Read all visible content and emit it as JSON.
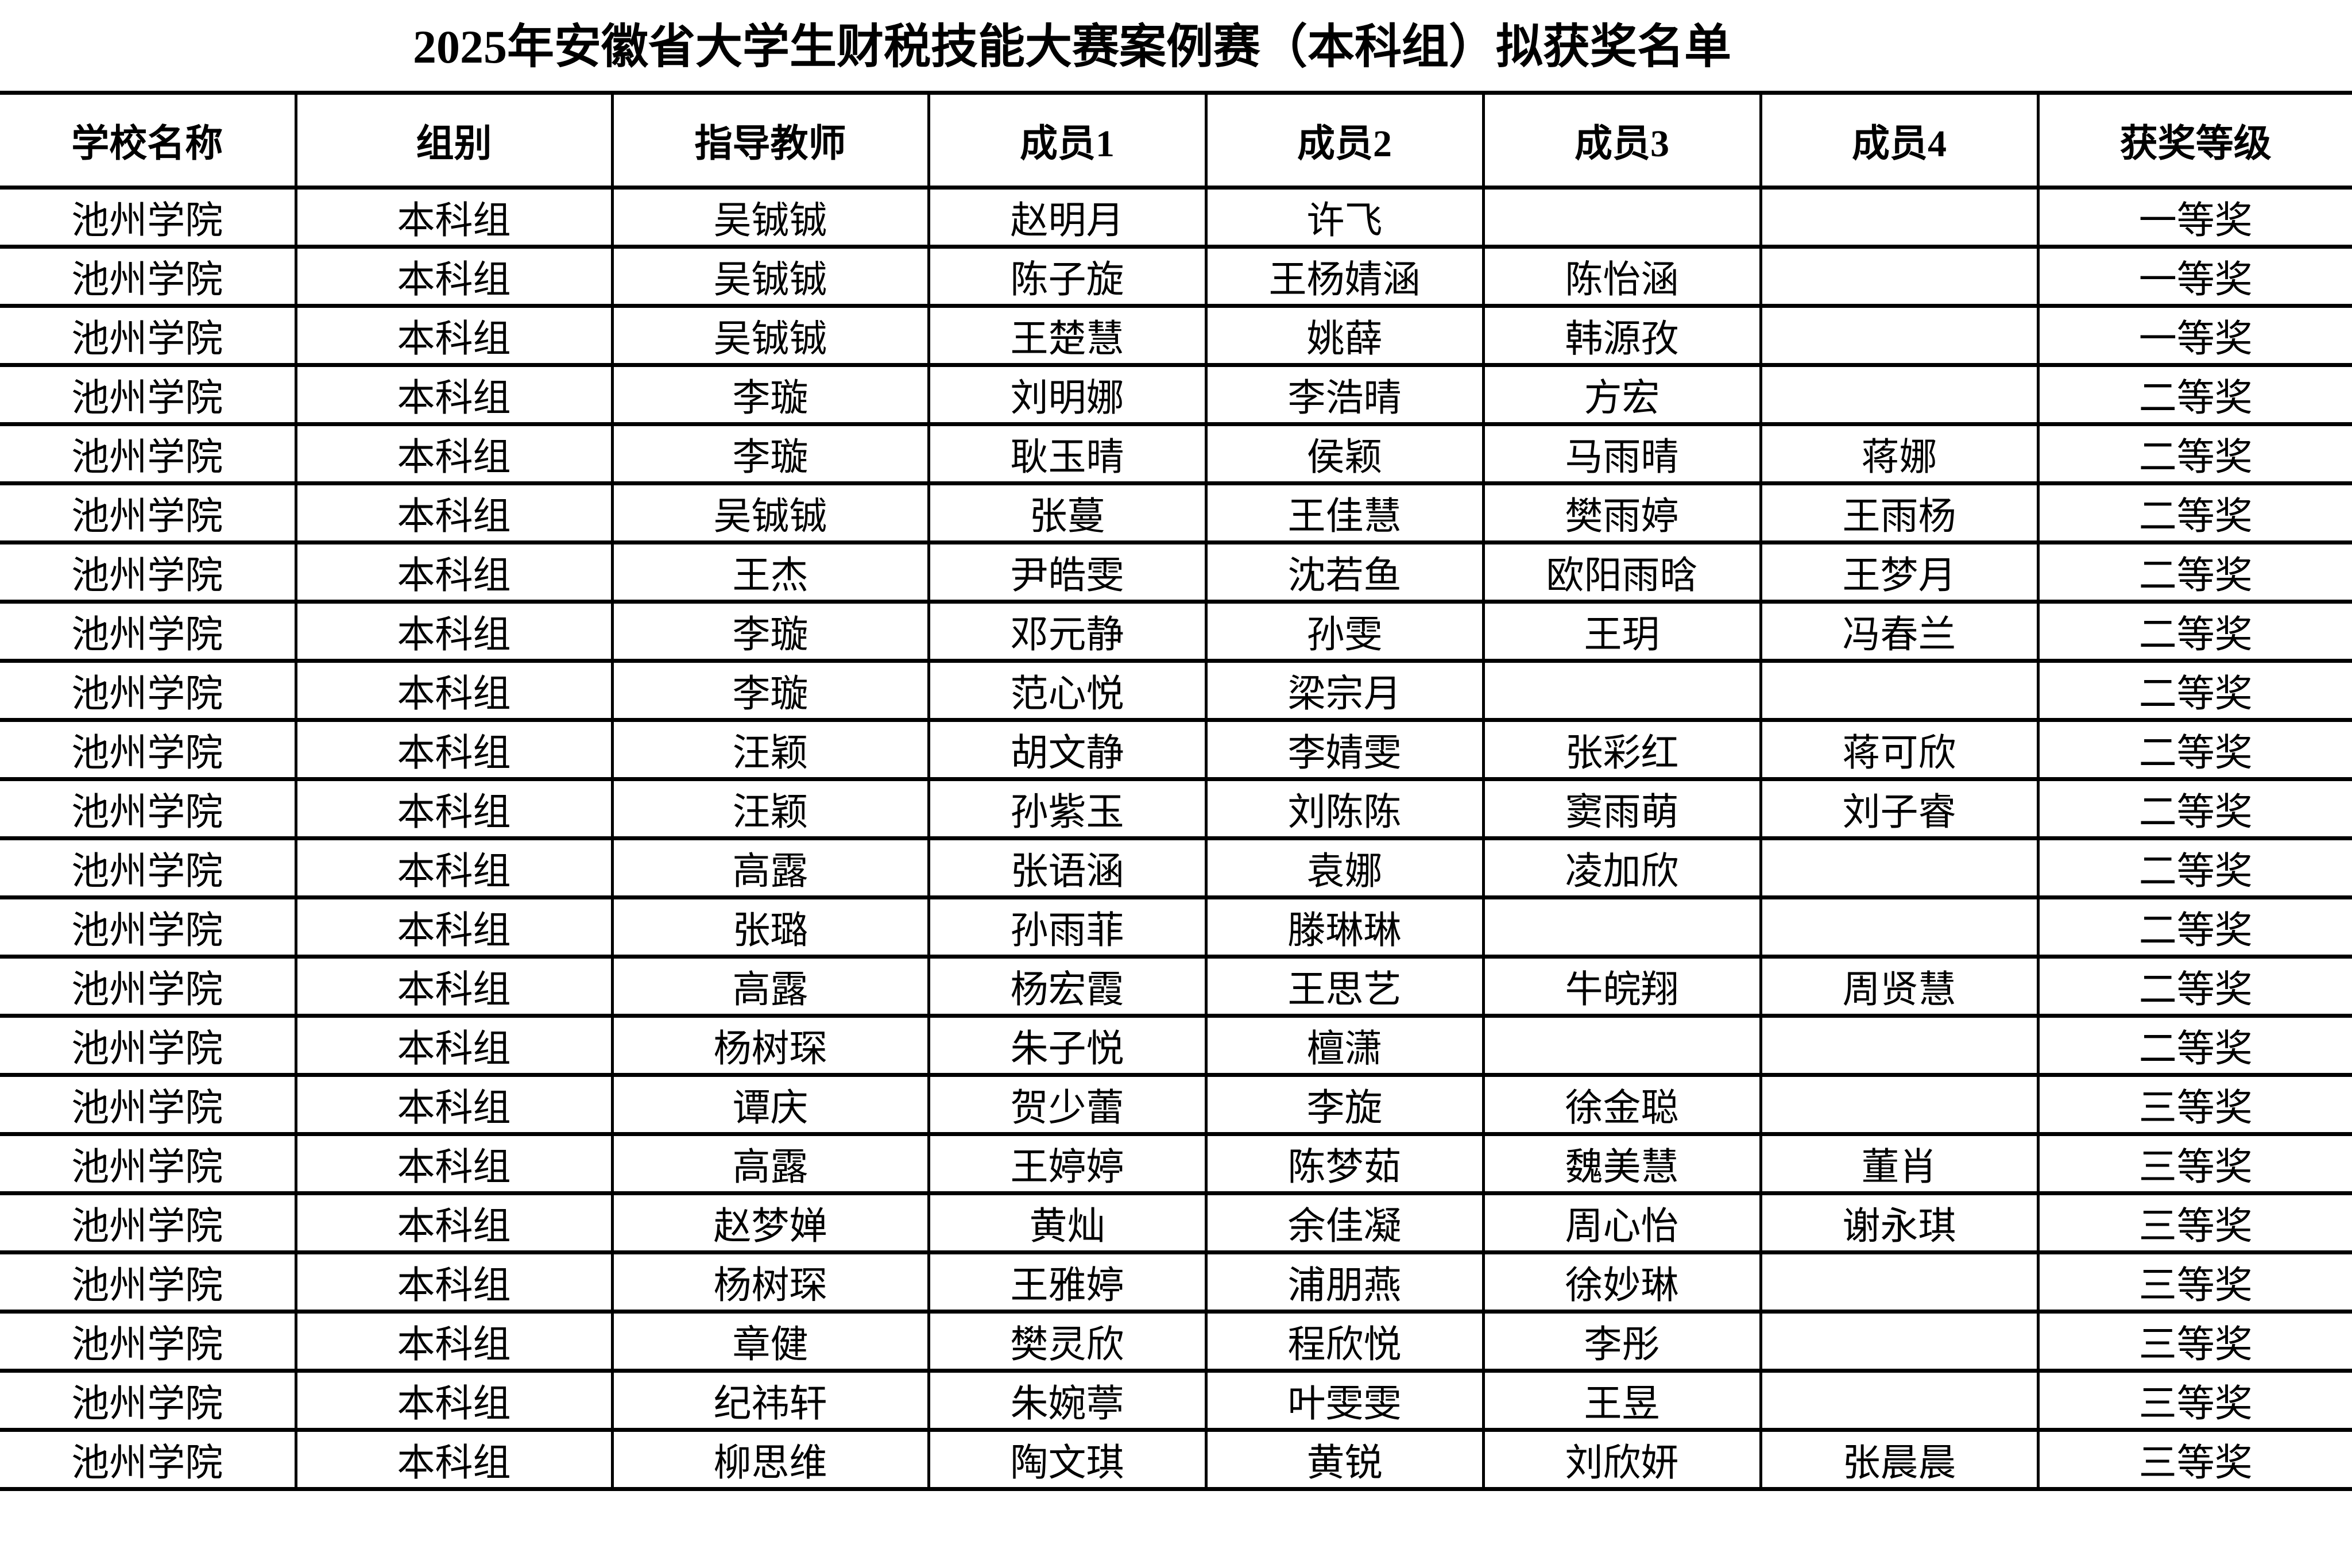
{
  "title": "2025年安徽省大学生财税技能大赛案例赛（本科组）拟获奖名单",
  "columns": [
    "学校名称",
    "组别",
    "指导教师",
    "成员1",
    "成员2",
    "成员3",
    "成员4",
    "获奖等级"
  ],
  "rows": [
    [
      "池州学院",
      "本科组",
      "吴铖铖",
      "赵明月",
      "许飞",
      "",
      "",
      "一等奖"
    ],
    [
      "池州学院",
      "本科组",
      "吴铖铖",
      "陈子旋",
      "王杨婧涵",
      "陈怡涵",
      "",
      "一等奖"
    ],
    [
      "池州学院",
      "本科组",
      "吴铖铖",
      "王楚慧",
      "姚薛",
      "韩源孜",
      "",
      "一等奖"
    ],
    [
      "池州学院",
      "本科组",
      "李璇",
      "刘明娜",
      "李浩晴",
      "方宏",
      "",
      "二等奖"
    ],
    [
      "池州学院",
      "本科组",
      "李璇",
      "耿玉晴",
      "侯颖",
      "马雨晴",
      "蒋娜",
      "二等奖"
    ],
    [
      "池州学院",
      "本科组",
      "吴铖铖",
      "张蔓",
      "王佳慧",
      "樊雨婷",
      "王雨杨",
      "二等奖"
    ],
    [
      "池州学院",
      "本科组",
      "王杰",
      "尹皓雯",
      "沈若鱼",
      "欧阳雨晗",
      "王梦月",
      "二等奖"
    ],
    [
      "池州学院",
      "本科组",
      "李璇",
      "邓元静",
      "孙雯",
      "王玥",
      "冯春兰",
      "二等奖"
    ],
    [
      "池州学院",
      "本科组",
      "李璇",
      "范心悦",
      "梁宗月",
      "",
      "",
      "二等奖"
    ],
    [
      "池州学院",
      "本科组",
      "汪颖",
      "胡文静",
      "李婧雯",
      "张彩红",
      "蒋可欣",
      "二等奖"
    ],
    [
      "池州学院",
      "本科组",
      "汪颖",
      "孙紫玉",
      "刘陈陈",
      "窦雨萌",
      "刘子睿",
      "二等奖"
    ],
    [
      "池州学院",
      "本科组",
      "高露",
      "张语涵",
      "袁娜",
      "凌加欣",
      "",
      "二等奖"
    ],
    [
      "池州学院",
      "本科组",
      "张璐",
      "孙雨菲",
      "滕琳琳",
      "",
      "",
      "二等奖"
    ],
    [
      "池州学院",
      "本科组",
      "高露",
      "杨宏霞",
      "王思艺",
      "牛皖翔",
      "周贤慧",
      "二等奖"
    ],
    [
      "池州学院",
      "本科组",
      "杨树琛",
      "朱子悦",
      "檀潇",
      "",
      "",
      "二等奖"
    ],
    [
      "池州学院",
      "本科组",
      "谭庆",
      "贺少蕾",
      "李旋",
      "徐金聪",
      "",
      "三等奖"
    ],
    [
      "池州学院",
      "本科组",
      "高露",
      "王婷婷",
      "陈梦茹",
      "魏美慧",
      "董肖",
      "三等奖"
    ],
    [
      "池州学院",
      "本科组",
      "赵梦婵",
      "黄灿",
      "余佳凝",
      "周心怡",
      "谢永琪",
      "三等奖"
    ],
    [
      "池州学院",
      "本科组",
      "杨树琛",
      "王雅婷",
      "浦朋燕",
      "徐妙琳",
      "",
      "三等奖"
    ],
    [
      "池州学院",
      "本科组",
      "章健",
      "樊灵欣",
      "程欣悦",
      "李彤",
      "",
      "三等奖"
    ],
    [
      "池州学院",
      "本科组",
      "纪祎轩",
      "朱婉葶",
      "叶雯雯",
      "王昱",
      "",
      "三等奖"
    ],
    [
      "池州学院",
      "本科组",
      "柳思维",
      "陶文琪",
      "黄锐",
      "刘欣妍",
      "张晨晨",
      "三等奖"
    ]
  ]
}
